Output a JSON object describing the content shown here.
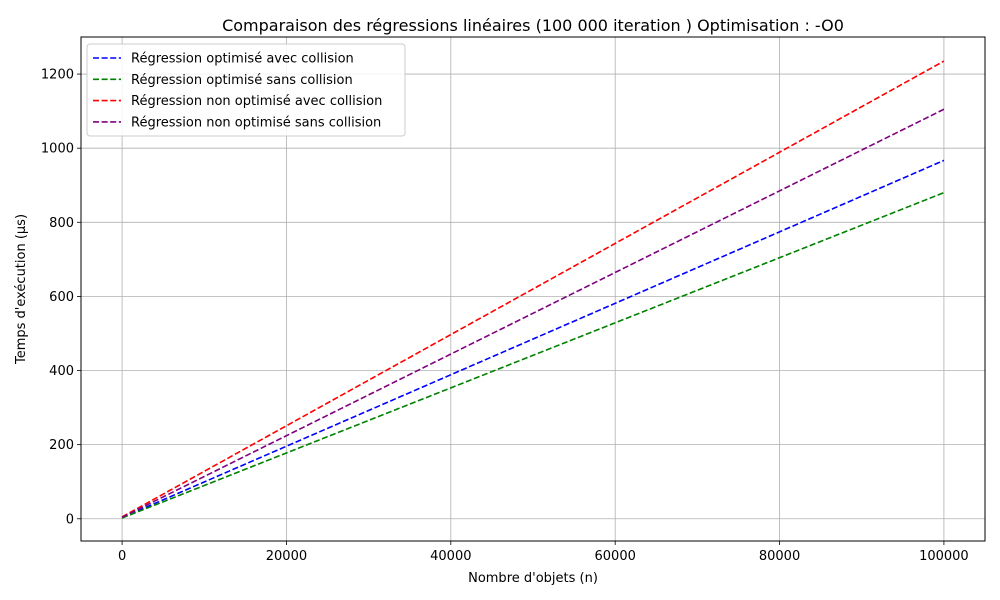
{
  "chart_data": {
    "type": "line",
    "title": "Comparaison des régressions linéaires (100 000 iteration ) Optimisation : -O0",
    "xlabel": "Nombre d'objets (n)",
    "ylabel": "Temps d'exécution (µs)",
    "xlim": [
      -5000,
      105000
    ],
    "ylim": [
      -60,
      1300
    ],
    "x_ticks": [
      0,
      20000,
      40000,
      60000,
      80000,
      100000
    ],
    "x_tick_labels": [
      "0",
      "20000",
      "40000",
      "60000",
      "80000",
      "100000"
    ],
    "y_ticks": [
      0,
      200,
      400,
      600,
      800,
      1000,
      1200
    ],
    "y_tick_labels": [
      "0",
      "200",
      "400",
      "600",
      "800",
      "1000",
      "1200"
    ],
    "grid": true,
    "legend_position": "upper-left",
    "line_style": "dashed",
    "series": [
      {
        "name": "Régression optimisé avec collision",
        "color": "#0000ff",
        "x": [
          0,
          100000
        ],
        "y": [
          3,
          967
        ]
      },
      {
        "name": "Régression optimisé sans collision",
        "color": "#008000",
        "x": [
          0,
          100000
        ],
        "y": [
          2,
          880
        ]
      },
      {
        "name": "Régression non optimisé avec collision",
        "color": "#ff0000",
        "x": [
          0,
          100000
        ],
        "y": [
          5,
          1235
        ]
      },
      {
        "name": "Régression non optimisé sans collision",
        "color": "#800080",
        "x": [
          0,
          100000
        ],
        "y": [
          4,
          1105
        ]
      }
    ]
  }
}
